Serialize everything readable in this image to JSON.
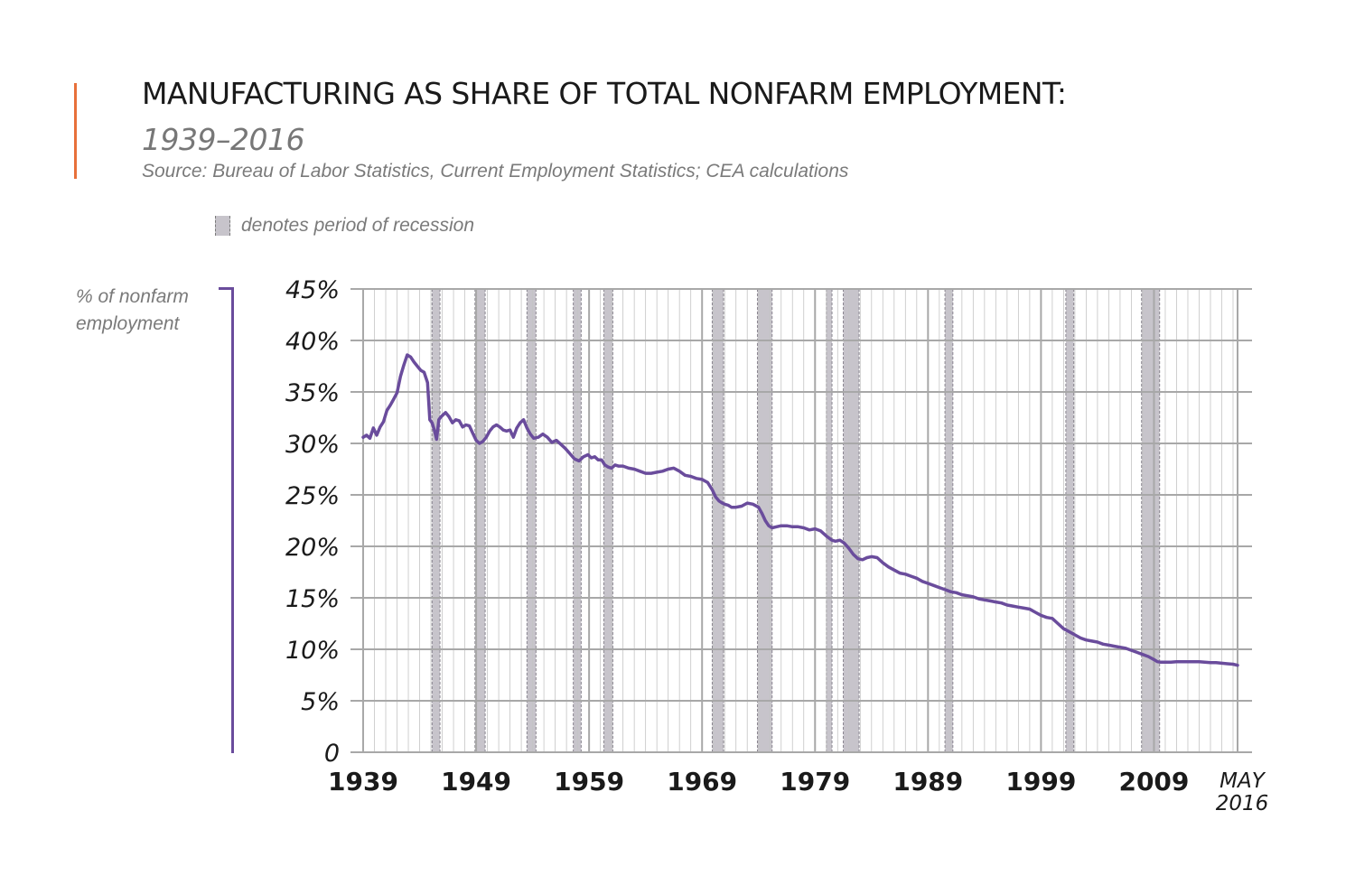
{
  "header": {
    "title": "MANUFACTURING AS SHARE OF TOTAL NONFARM EMPLOYMENT:",
    "subtitle": "1939–2016",
    "source": "Source: Bureau of Labor Statistics, Current Employment Statistics; CEA calculations"
  },
  "legend": {
    "label": "denotes period of recession",
    "swatch_color": "#c7c4cb"
  },
  "y_axis_label": "% of nonfarm employment",
  "colors": {
    "accent": "#e8703a",
    "line": "#6a4c9c",
    "grid": "#b5b5b5",
    "recession": "#c7c4cb"
  },
  "chart_data": {
    "type": "line",
    "title": "MANUFACTURING AS SHARE OF TOTAL NONFARM EMPLOYMENT:",
    "subtitle": "1939–2016",
    "xlabel": "",
    "ylabel": "% of nonfarm employment",
    "xlim": [
      1939,
      2016.4
    ],
    "ylim": [
      0,
      45
    ],
    "y_ticks": [
      0,
      5,
      10,
      15,
      20,
      25,
      30,
      35,
      40,
      45
    ],
    "y_tick_labels": [
      "0",
      "5%",
      "10%",
      "15%",
      "20%",
      "25%",
      "30%",
      "35%",
      "40%",
      "45%"
    ],
    "x_ticks": [
      1939,
      1949,
      1959,
      1969,
      1979,
      1989,
      1999,
      2009
    ],
    "x_tick_labels": [
      "1939",
      "1949",
      "1959",
      "1969",
      "1979",
      "1989",
      "1999",
      "2009"
    ],
    "x_end_label": [
      "MAY",
      "2016"
    ],
    "grid": true,
    "recessions": [
      [
        1945.1,
        1945.8
      ],
      [
        1948.9,
        1949.8
      ],
      [
        1953.5,
        1954.3
      ],
      [
        1957.6,
        1958.3
      ],
      [
        1960.3,
        1961.1
      ],
      [
        1969.9,
        1970.9
      ],
      [
        1973.9,
        1975.2
      ],
      [
        1980.0,
        1980.5
      ],
      [
        1981.5,
        1982.9
      ],
      [
        1990.5,
        1991.2
      ],
      [
        2001.2,
        2001.9
      ],
      [
        2007.9,
        2009.5
      ]
    ],
    "series": [
      {
        "x": [
          1939.0,
          1939.3,
          1939.6,
          1939.9,
          1940.2,
          1940.5,
          1940.8,
          1941.1,
          1941.4,
          1941.7,
          1942.0,
          1942.3,
          1942.6,
          1942.9,
          1943.2,
          1943.5,
          1943.8,
          1944.1,
          1944.4,
          1944.7,
          1944.9,
          1945.1,
          1945.3,
          1945.5,
          1945.7,
          1945.9,
          1946.1,
          1946.3,
          1946.6,
          1946.9,
          1947.2,
          1947.5,
          1947.8,
          1948.1,
          1948.4,
          1948.7,
          1949.0,
          1949.3,
          1949.6,
          1949.9,
          1950.2,
          1950.5,
          1950.8,
          1951.1,
          1951.4,
          1951.7,
          1952.0,
          1952.3,
          1952.6,
          1952.9,
          1953.2,
          1953.5,
          1953.8,
          1954.1,
          1954.5,
          1954.9,
          1955.3,
          1955.7,
          1956.1,
          1956.5,
          1956.9,
          1957.3,
          1957.7,
          1958.1,
          1958.5,
          1958.9,
          1959.2,
          1959.5,
          1959.8,
          1960.1,
          1960.4,
          1960.7,
          1961.0,
          1961.3,
          1961.6,
          1962.0,
          1962.5,
          1963.0,
          1963.5,
          1964.0,
          1964.5,
          1965.0,
          1965.5,
          1966.0,
          1966.5,
          1967.0,
          1967.5,
          1968.0,
          1968.5,
          1969.0,
          1969.5,
          1969.9,
          1970.2,
          1970.5,
          1970.8,
          1971.0,
          1971.3,
          1971.6,
          1972.0,
          1972.5,
          1973.0,
          1973.5,
          1974.0,
          1974.3,
          1974.6,
          1974.9,
          1975.2,
          1975.6,
          1976.0,
          1976.5,
          1977.0,
          1977.5,
          1978.0,
          1978.5,
          1979.0,
          1979.5,
          1980.0,
          1980.5,
          1980.8,
          1981.2,
          1981.6,
          1982.0,
          1982.4,
          1982.8,
          1983.2,
          1983.6,
          1984.0,
          1984.5,
          1985.0,
          1985.5,
          1986.0,
          1986.5,
          1987.0,
          1987.5,
          1988.0,
          1988.5,
          1989.0,
          1989.5,
          1990.0,
          1990.5,
          1991.0,
          1991.5,
          1992.0,
          1992.5,
          1993.0,
          1993.5,
          1994.0,
          1994.5,
          1995.0,
          1995.5,
          1996.0,
          1996.5,
          1997.0,
          1997.5,
          1998.0,
          1998.5,
          1999.0,
          1999.5,
          2000.0,
          2000.5,
          2001.0,
          2001.5,
          2002.0,
          2002.5,
          2003.0,
          2003.5,
          2004.0,
          2004.5,
          2005.0,
          2005.5,
          2006.0,
          2006.5,
          2007.0,
          2007.5,
          2008.0,
          2008.5,
          2009.0,
          2009.3,
          2009.6,
          2010.0,
          2010.5,
          2011.0,
          2011.5,
          2012.0,
          2012.5,
          2013.0,
          2013.5,
          2014.0,
          2014.5,
          2015.0,
          2015.5,
          2016.0,
          2016.4
        ],
        "values": [
          30.6,
          30.8,
          30.5,
          31.5,
          30.8,
          31.6,
          32.1,
          33.2,
          33.7,
          34.3,
          34.9,
          36.5,
          37.6,
          38.6,
          38.4,
          37.9,
          37.5,
          37.1,
          36.9,
          35.9,
          32.3,
          32.0,
          31.3,
          30.4,
          32.3,
          32.6,
          32.8,
          33.0,
          32.6,
          32.0,
          32.3,
          32.2,
          31.6,
          31.8,
          31.7,
          31.0,
          30.3,
          30.0,
          30.2,
          30.6,
          31.2,
          31.6,
          31.8,
          31.6,
          31.3,
          31.2,
          31.3,
          30.6,
          31.5,
          32.0,
          32.3,
          31.5,
          30.9,
          30.5,
          30.6,
          30.9,
          30.6,
          30.1,
          30.3,
          29.9,
          29.5,
          29.0,
          28.5,
          28.3,
          28.7,
          28.9,
          28.6,
          28.7,
          28.4,
          28.4,
          27.9,
          27.7,
          27.6,
          27.9,
          27.8,
          27.8,
          27.6,
          27.5,
          27.3,
          27.1,
          27.1,
          27.2,
          27.3,
          27.5,
          27.6,
          27.3,
          26.9,
          26.8,
          26.6,
          26.5,
          26.2,
          25.5,
          24.8,
          24.4,
          24.2,
          24.1,
          24.0,
          23.8,
          23.8,
          23.9,
          24.2,
          24.1,
          23.8,
          23.2,
          22.5,
          22.0,
          21.8,
          21.9,
          22.0,
          22.0,
          21.9,
          21.9,
          21.8,
          21.6,
          21.7,
          21.5,
          21.0,
          20.6,
          20.5,
          20.6,
          20.3,
          19.8,
          19.2,
          18.8,
          18.7,
          18.9,
          19.0,
          18.9,
          18.4,
          18.0,
          17.7,
          17.4,
          17.3,
          17.1,
          16.9,
          16.6,
          16.4,
          16.2,
          16.0,
          15.8,
          15.6,
          15.5,
          15.3,
          15.2,
          15.1,
          14.9,
          14.8,
          14.7,
          14.6,
          14.5,
          14.3,
          14.2,
          14.1,
          14.0,
          13.9,
          13.6,
          13.3,
          13.1,
          13.0,
          12.5,
          12.0,
          11.7,
          11.4,
          11.1,
          10.9,
          10.8,
          10.7,
          10.5,
          10.4,
          10.3,
          10.2,
          10.1,
          9.9,
          9.7,
          9.5,
          9.3,
          9.0,
          8.8,
          8.75,
          8.75,
          8.75,
          8.8,
          8.8,
          8.8,
          8.8,
          8.8,
          8.75,
          8.7,
          8.7,
          8.65,
          8.6,
          8.55,
          8.45
        ]
      }
    ]
  }
}
